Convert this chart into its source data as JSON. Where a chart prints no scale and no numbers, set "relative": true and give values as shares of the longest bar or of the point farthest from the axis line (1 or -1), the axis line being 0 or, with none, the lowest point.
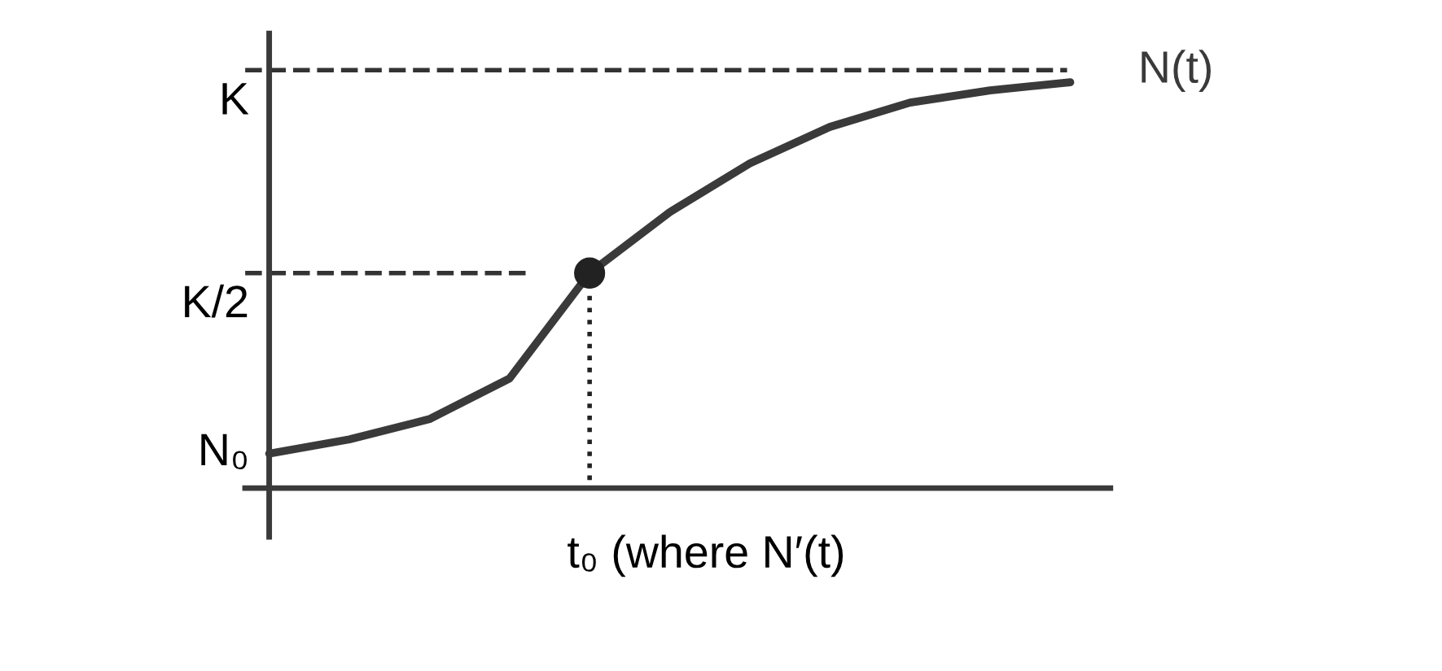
{
  "chart_data": {
    "type": "line",
    "relative": true,
    "categories": [
      null,
      null,
      null,
      null,
      null,
      null,
      null,
      null,
      null,
      null,
      null
    ],
    "series": [
      {
        "name": "N(t)",
        "color": "#3a3a3a",
        "values": [
          0.085,
          0.12,
          0.17,
          0.27,
          0.53,
          0.68,
          0.8,
          0.89,
          0.95,
          0.98,
          1
        ]
      }
    ],
    "ref_lines": [
      {
        "axis": "y",
        "value": 1.03,
        "label": "K",
        "line_style": "dashed",
        "color": "#333333"
      },
      {
        "axis": "y",
        "value": 0.53,
        "label": "K/2",
        "line_style": "dashed",
        "color": "#333333"
      }
    ],
    "annotations": [
      "N₀",
      "t₀ (where N′(t)"
    ],
    "legend": false
  }
}
